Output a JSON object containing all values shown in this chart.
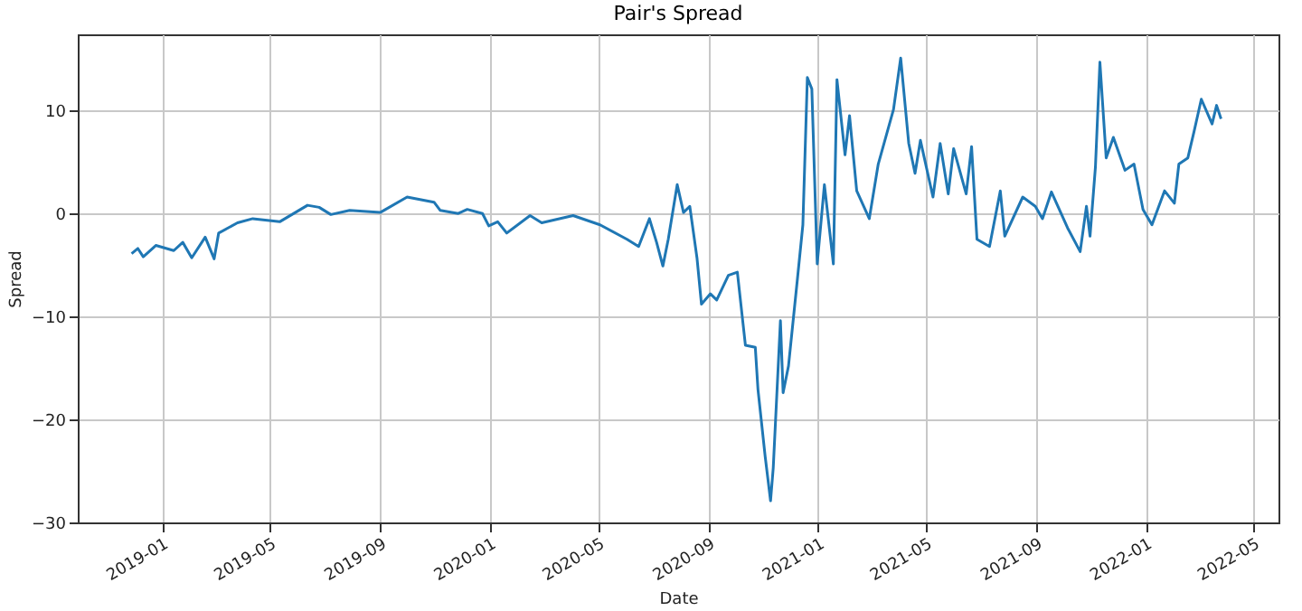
{
  "chart_data": {
    "type": "line",
    "title": "Pair's Spread",
    "xlabel": "Date",
    "ylabel": "Spread",
    "xlim": [
      "2018-09-29",
      "2022-05-29"
    ],
    "xticks": [
      "2019-01",
      "2019-05",
      "2019-09",
      "2020-01",
      "2020-05",
      "2020-09",
      "2021-01",
      "2021-05",
      "2021-09",
      "2022-01",
      "2022-05"
    ],
    "ylim": [
      -30,
      17.4
    ],
    "yticks": [
      {
        "value": -30,
        "label": "−30"
      },
      {
        "value": -20,
        "label": "−20"
      },
      {
        "value": -10,
        "label": "−10"
      },
      0,
      10
    ],
    "grid": true,
    "series": [
      {
        "color": "#1f77b4",
        "x": [
          "2018-11-28",
          "2018-12-05",
          "2018-12-11",
          "2018-12-25",
          "2019-01-14",
          "2019-01-24",
          "2019-02-03",
          "2019-02-18",
          "2019-02-28",
          "2019-03-05",
          "2019-03-26",
          "2019-04-12",
          "2019-05-12",
          "2019-06-12",
          "2019-06-25",
          "2019-07-08",
          "2019-07-29",
          "2019-09-01",
          "2019-10-01",
          "2019-10-31",
          "2019-11-07",
          "2019-11-27",
          "2019-12-07",
          "2019-12-24",
          "2019-12-31",
          "2020-01-10",
          "2020-01-20",
          "2020-02-15",
          "2020-02-28",
          "2020-04-03",
          "2020-05-03",
          "2020-06-02",
          "2020-06-15",
          "2020-06-27",
          "2020-07-05",
          "2020-07-12",
          "2020-07-18",
          "2020-07-28",
          "2020-08-04",
          "2020-08-11",
          "2020-08-19",
          "2020-08-24",
          "2020-09-03",
          "2020-09-10",
          "2020-09-23",
          "2020-10-03",
          "2020-10-12",
          "2020-10-23",
          "2020-10-26",
          "2020-11-03",
          "2020-11-09",
          "2020-11-12",
          "2020-11-20",
          "2020-11-23",
          "2020-11-29",
          "2020-12-09",
          "2020-12-15",
          "2020-12-20",
          "2020-12-25",
          "2020-12-31",
          "2021-01-08",
          "2021-01-18",
          "2021-01-22",
          "2021-01-31",
          "2021-02-05",
          "2021-02-13",
          "2021-02-27",
          "2021-03-09",
          "2021-03-26",
          "2021-04-03",
          "2021-04-12",
          "2021-04-19",
          "2021-04-25",
          "2021-05-09",
          "2021-05-17",
          "2021-05-26",
          "2021-06-01",
          "2021-06-15",
          "2021-06-21",
          "2021-06-27",
          "2021-07-11",
          "2021-07-23",
          "2021-07-28",
          "2021-08-17",
          "2021-08-31",
          "2021-09-08",
          "2021-09-18",
          "2021-10-06",
          "2021-10-20",
          "2021-10-27",
          "2021-10-31",
          "2021-11-06",
          "2021-11-11",
          "2021-11-18",
          "2021-11-26",
          "2021-12-09",
          "2021-12-19",
          "2021-12-29",
          "2022-01-08",
          "2022-01-22",
          "2022-02-02",
          "2022-02-07",
          "2022-02-17",
          "2022-02-24",
          "2022-03-04",
          "2022-03-16",
          "2022-03-21",
          "2022-03-26"
        ],
        "values": [
          -3.9,
          -3.4,
          -4.2,
          -3.1,
          -3.6,
          -2.8,
          -4.3,
          -2.3,
          -4.4,
          -1.9,
          -0.9,
          -0.5,
          -0.8,
          0.8,
          0.6,
          -0.1,
          0.3,
          0.1,
          1.6,
          1.1,
          0.3,
          0.0,
          0.4,
          0.0,
          -1.2,
          -0.8,
          -1.9,
          -0.2,
          -0.9,
          -0.2,
          -1.1,
          -2.5,
          -3.2,
          -0.5,
          -2.8,
          -5.1,
          -2.5,
          2.8,
          0.1,
          0.7,
          -4.3,
          -8.8,
          -7.8,
          -8.4,
          -6.0,
          -5.7,
          -12.8,
          -13.0,
          -17.1,
          -23.6,
          -27.9,
          -24.7,
          -10.4,
          -17.4,
          -14.8,
          -6.3,
          -1.1,
          13.2,
          12.1,
          -4.9,
          2.8,
          -4.9,
          13.0,
          5.7,
          9.5,
          2.2,
          -0.5,
          4.8,
          10.1,
          15.1,
          6.8,
          3.9,
          7.1,
          1.6,
          6.8,
          1.9,
          6.3,
          1.9,
          6.5,
          -2.5,
          -3.2,
          2.2,
          -2.2,
          1.6,
          0.7,
          -0.5,
          2.1,
          -1.4,
          -3.7,
          0.7,
          -2.2,
          4.5,
          14.7,
          5.4,
          7.4,
          4.2,
          4.8,
          0.4,
          -1.1,
          2.2,
          1.0,
          4.8,
          5.4,
          8.0,
          11.1,
          8.7,
          10.5,
          9.2
        ]
      }
    ]
  }
}
